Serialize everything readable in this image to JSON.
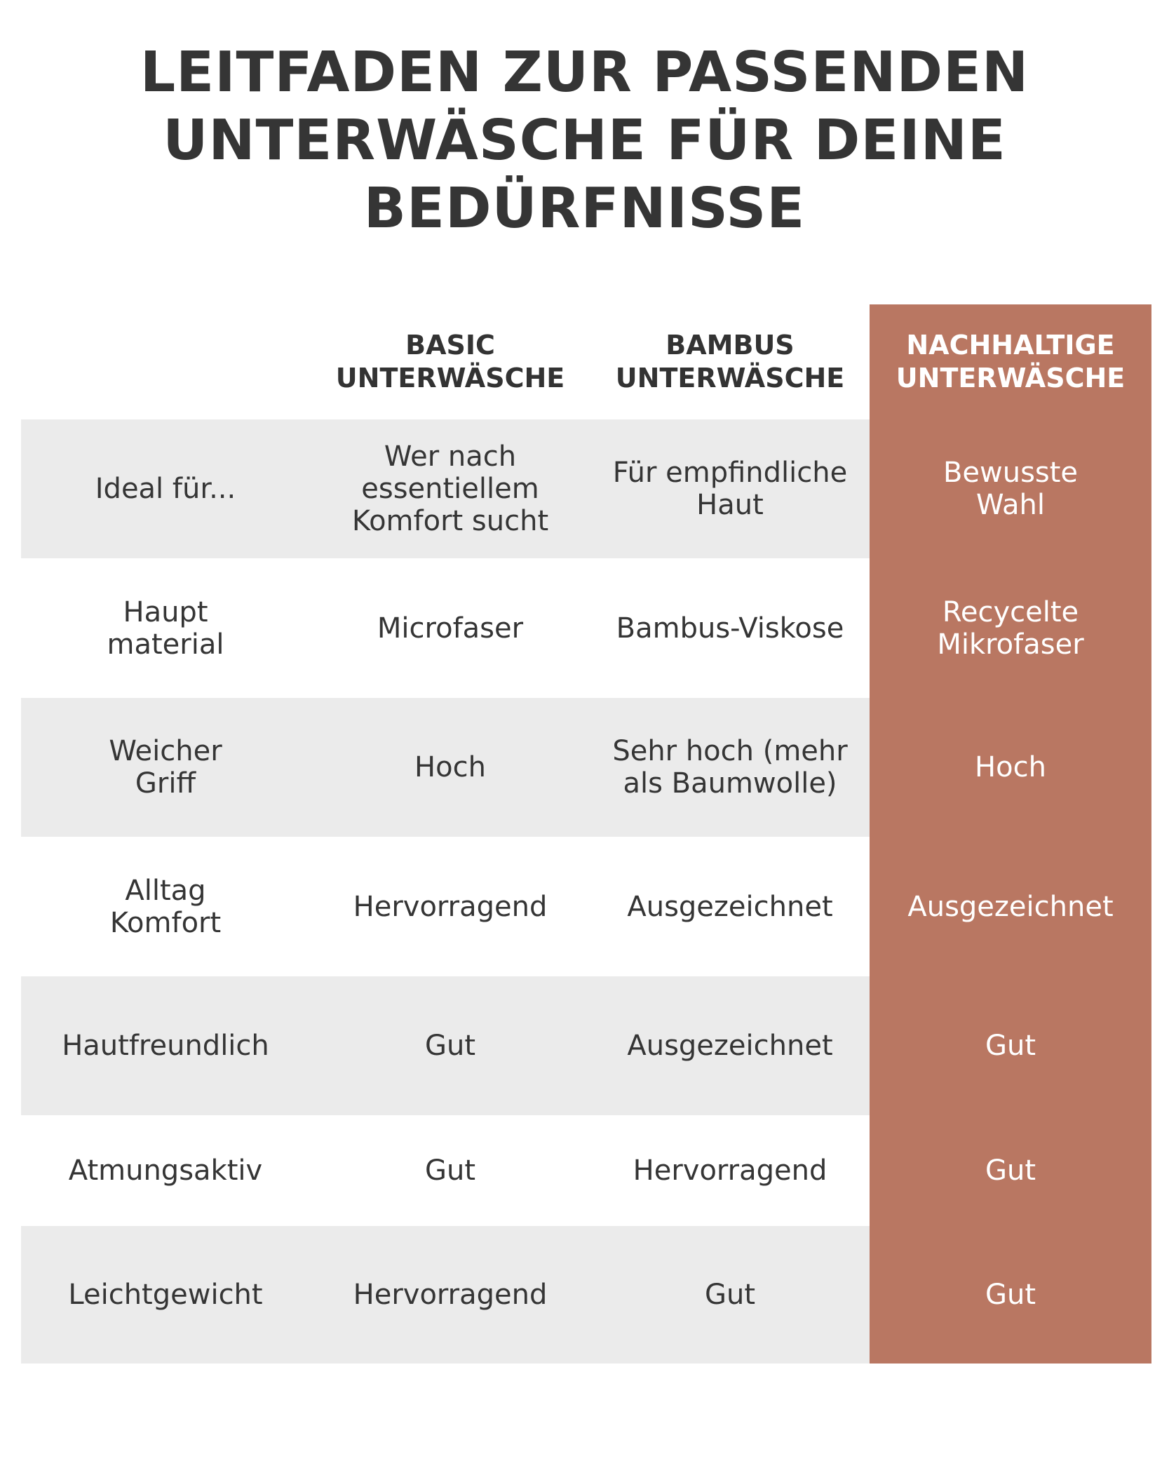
{
  "title": {
    "line1": "LEITFADEN ZUR PASSENDEN",
    "line2": "UNTERWÄSCHE FÜR DEINE",
    "line3": "BEDÜRFNISSE"
  },
  "colors": {
    "accent": "#b97762",
    "row_shade": "#ebebeb",
    "text": "#353535"
  },
  "table": {
    "headers": [
      "",
      "BASIC\nUNTERWÄSCHE",
      "BAMBUS\nUNTERWÄSCHE",
      "NACHHALTIGE\nUNTERWÄSCHE"
    ],
    "rows": [
      [
        "Ideal für...",
        "Wer nach\nessentiellem\nKomfort sucht",
        "Für empfindliche\nHaut",
        "Bewusste\nWahl"
      ],
      [
        "Haupt\nmaterial",
        "Microfaser",
        "Bambus-Viskose",
        "Recycelte\nMikrofaser"
      ],
      [
        "Weicher\nGriff",
        "Hoch",
        "Sehr hoch (mehr\nals Baumwolle)",
        "Hoch"
      ],
      [
        "Alltag\nKomfort",
        "Hervorragend",
        "Ausgezeichnet",
        "Ausgezeichnet"
      ],
      [
        "Hautfreundlich",
        "Gut",
        "Ausgezeichnet",
        "Gut"
      ],
      [
        "Atmungsaktiv",
        "Gut",
        "Hervorragend",
        "Gut"
      ],
      [
        "Leichtgewicht",
        "Hervorragend",
        "Gut",
        "Gut"
      ]
    ]
  }
}
